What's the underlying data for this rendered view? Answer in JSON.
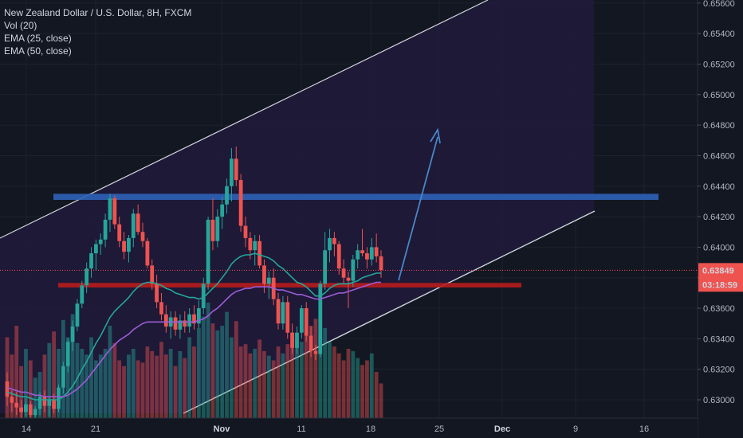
{
  "legend": {
    "title": "New Zealand Dollar / U.S. Dollar, 8H, FXCM",
    "vol": "Vol (20)",
    "ema25": "EMA (25, close)",
    "ema50": "EMA (50, close)"
  },
  "price_tag": {
    "value": "0.63849",
    "countdown": "03:18:59"
  },
  "colors": {
    "background": "#131722",
    "up": "#26a69a",
    "down": "#ef5350",
    "ema25": "#26a69a",
    "ema50": "#9c5cd6",
    "resistance_zone": "#2f62b7",
    "support_zone": "#b71c1c",
    "channel": "#d1d4dc",
    "projection_arrow": "#4a86c8",
    "channel_fill": "#1f1a3a",
    "grid": "#1e222d"
  },
  "chart_data": {
    "type": "candlestick",
    "title": "New Zealand Dollar / U.S. Dollar, 8H, FXCM",
    "y_axis_labels": [
      "0.65600",
      "0.65400",
      "0.65200",
      "0.65000",
      "0.64800",
      "0.64600",
      "0.64400",
      "0.64200",
      "0.64000",
      "0.63800",
      "0.63600",
      "0.63400",
      "0.63200",
      "0.63000"
    ],
    "ylim": [
      0.6288,
      0.6562
    ],
    "x_axis_labels": [
      "14",
      "21",
      "Nov",
      "11",
      "18",
      "25",
      "Dec",
      "9",
      "16"
    ],
    "last_price": 0.63849,
    "resistance_zone": [
      0.6431,
      0.6435
    ],
    "support_zone": [
      0.63736,
      0.63766
    ],
    "candles_ohlc": [
      [
        0.6312,
        0.6318,
        0.6296,
        0.6302
      ],
      [
        0.6302,
        0.6306,
        0.6292,
        0.6298
      ],
      [
        0.6298,
        0.6305,
        0.629,
        0.6295
      ],
      [
        0.6295,
        0.63,
        0.6288,
        0.6292
      ],
      [
        0.6292,
        0.6301,
        0.6289,
        0.6297
      ],
      [
        0.6297,
        0.6299,
        0.6288,
        0.629
      ],
      [
        0.629,
        0.6296,
        0.6288,
        0.6294
      ],
      [
        0.6294,
        0.6305,
        0.629,
        0.6302
      ],
      [
        0.6302,
        0.6306,
        0.6292,
        0.6296
      ],
      [
        0.6296,
        0.6302,
        0.6289,
        0.63
      ],
      [
        0.63,
        0.6304,
        0.6291,
        0.6294
      ],
      [
        0.6294,
        0.631,
        0.6292,
        0.6308
      ],
      [
        0.6308,
        0.6325,
        0.6304,
        0.6322
      ],
      [
        0.6322,
        0.634,
        0.6318,
        0.6338
      ],
      [
        0.6338,
        0.6352,
        0.6332,
        0.6348
      ],
      [
        0.6348,
        0.6366,
        0.6345,
        0.6363
      ],
      [
        0.6363,
        0.6378,
        0.636,
        0.6375
      ],
      [
        0.6375,
        0.639,
        0.637,
        0.6386
      ],
      [
        0.6386,
        0.64,
        0.638,
        0.6396
      ],
      [
        0.6396,
        0.6405,
        0.6385,
        0.6402
      ],
      [
        0.6402,
        0.6409,
        0.6395,
        0.6405
      ],
      [
        0.6405,
        0.6422,
        0.64,
        0.6418
      ],
      [
        0.6418,
        0.6435,
        0.641,
        0.6432
      ],
      [
        0.6432,
        0.6434,
        0.6412,
        0.6415
      ],
      [
        0.6415,
        0.642,
        0.64,
        0.6404
      ],
      [
        0.6404,
        0.641,
        0.6392,
        0.6397
      ],
      [
        0.6397,
        0.6408,
        0.639,
        0.6406
      ],
      [
        0.6406,
        0.6425,
        0.64,
        0.6422
      ],
      [
        0.6422,
        0.6428,
        0.6408,
        0.641
      ],
      [
        0.641,
        0.6416,
        0.64,
        0.6404
      ],
      [
        0.6404,
        0.6406,
        0.6386,
        0.6388
      ],
      [
        0.6388,
        0.6392,
        0.6372,
        0.6376
      ],
      [
        0.6376,
        0.6382,
        0.636,
        0.6364
      ],
      [
        0.6364,
        0.637,
        0.6352,
        0.6356
      ],
      [
        0.6356,
        0.6362,
        0.6344,
        0.6348
      ],
      [
        0.6348,
        0.6358,
        0.634,
        0.6354
      ],
      [
        0.6354,
        0.6358,
        0.6342,
        0.6346
      ],
      [
        0.6346,
        0.6356,
        0.634,
        0.6352
      ],
      [
        0.6352,
        0.6358,
        0.6344,
        0.6348
      ],
      [
        0.6348,
        0.636,
        0.6344,
        0.6356
      ],
      [
        0.6356,
        0.6362,
        0.6346,
        0.635
      ],
      [
        0.635,
        0.6365,
        0.6347,
        0.636
      ],
      [
        0.636,
        0.638,
        0.6356,
        0.6376
      ],
      [
        0.6376,
        0.642,
        0.6372,
        0.6418
      ],
      [
        0.6418,
        0.6432,
        0.6398,
        0.6404
      ],
      [
        0.6404,
        0.6425,
        0.64,
        0.642
      ],
      [
        0.642,
        0.6433,
        0.6412,
        0.6428
      ],
      [
        0.6428,
        0.6445,
        0.6422,
        0.644
      ],
      [
        0.644,
        0.6465,
        0.643,
        0.6458
      ],
      [
        0.6458,
        0.6466,
        0.644,
        0.6444
      ],
      [
        0.6444,
        0.6448,
        0.641,
        0.6414
      ],
      [
        0.6414,
        0.642,
        0.64,
        0.6406
      ],
      [
        0.6406,
        0.641,
        0.6392,
        0.6398
      ],
      [
        0.6398,
        0.6408,
        0.6388,
        0.6404
      ],
      [
        0.6404,
        0.6408,
        0.6386,
        0.6388
      ],
      [
        0.6388,
        0.6392,
        0.637,
        0.6376
      ],
      [
        0.6376,
        0.6384,
        0.6366,
        0.638
      ],
      [
        0.638,
        0.6386,
        0.6362,
        0.6366
      ],
      [
        0.6366,
        0.637,
        0.6346,
        0.635
      ],
      [
        0.635,
        0.6368,
        0.6346,
        0.6364
      ],
      [
        0.6364,
        0.6368,
        0.634,
        0.6344
      ],
      [
        0.6344,
        0.635,
        0.633,
        0.6334
      ],
      [
        0.6334,
        0.6348,
        0.633,
        0.6344
      ],
      [
        0.6344,
        0.6362,
        0.634,
        0.636
      ],
      [
        0.636,
        0.6364,
        0.6338,
        0.6342
      ],
      [
        0.6342,
        0.6348,
        0.6328,
        0.6332
      ],
      [
        0.6332,
        0.6336,
        0.6326,
        0.633
      ],
      [
        0.633,
        0.6378,
        0.6328,
        0.6376
      ],
      [
        0.6376,
        0.641,
        0.6372,
        0.6398
      ],
      [
        0.6398,
        0.6412,
        0.639,
        0.6406
      ],
      [
        0.6406,
        0.641,
        0.6394,
        0.6402
      ],
      [
        0.6402,
        0.6404,
        0.6382,
        0.6386
      ],
      [
        0.6386,
        0.6392,
        0.6376,
        0.638
      ],
      [
        0.638,
        0.6384,
        0.636,
        0.6378
      ],
      [
        0.6378,
        0.6395,
        0.6374,
        0.6392
      ],
      [
        0.6392,
        0.6402,
        0.6386,
        0.6398
      ],
      [
        0.6398,
        0.6412,
        0.6394,
        0.6396
      ],
      [
        0.6396,
        0.64,
        0.6386,
        0.6392
      ],
      [
        0.6392,
        0.6406,
        0.6388,
        0.64
      ],
      [
        0.64,
        0.6409,
        0.639,
        0.6394
      ],
      [
        0.6394,
        0.6398,
        0.638,
        0.6385
      ]
    ],
    "ema25": [
      0.6305,
      0.6304,
      0.6303,
      0.6302,
      0.6302,
      0.6301,
      0.63,
      0.63,
      0.63,
      0.63,
      0.63,
      0.63,
      0.6302,
      0.6305,
      0.6309,
      0.6314,
      0.632,
      0.6325,
      0.6331,
      0.6337,
      0.6342,
      0.6348,
      0.6354,
      0.6358,
      0.6361,
      0.6364,
      0.6367,
      0.6371,
      0.6374,
      0.6376,
      0.6377,
      0.6377,
      0.6376,
      0.6375,
      0.6373,
      0.6372,
      0.637,
      0.6369,
      0.6368,
      0.6367,
      0.6367,
      0.6366,
      0.6367,
      0.637,
      0.6373,
      0.6376,
      0.638,
      0.6384,
      0.6389,
      0.6392,
      0.6394,
      0.6395,
      0.6395,
      0.6396,
      0.6395,
      0.6394,
      0.6393,
      0.6391,
      0.6388,
      0.6386,
      0.6383,
      0.638,
      0.6377,
      0.6376,
      0.6374,
      0.6371,
      0.6368,
      0.6368,
      0.637,
      0.6373,
      0.6375,
      0.6376,
      0.6376,
      0.6376,
      0.6377,
      0.6378,
      0.638,
      0.6381,
      0.6382,
      0.6383,
      0.6383
    ],
    "ema50": [
      0.6308,
      0.6307,
      0.6306,
      0.6305,
      0.6305,
      0.6304,
      0.6303,
      0.6303,
      0.6302,
      0.6302,
      0.6302,
      0.6302,
      0.6302,
      0.6303,
      0.6305,
      0.6307,
      0.631,
      0.6313,
      0.6317,
      0.6321,
      0.6325,
      0.6329,
      0.6333,
      0.6336,
      0.6339,
      0.6341,
      0.6343,
      0.6346,
      0.6348,
      0.635,
      0.6351,
      0.6351,
      0.6351,
      0.6351,
      0.6351,
      0.6351,
      0.6351,
      0.6351,
      0.6351,
      0.6351,
      0.6351,
      0.6352,
      0.6353,
      0.6355,
      0.6358,
      0.636,
      0.6363,
      0.6366,
      0.6369,
      0.6371,
      0.6372,
      0.6373,
      0.6373,
      0.6374,
      0.6374,
      0.6374,
      0.6374,
      0.6373,
      0.6372,
      0.6372,
      0.6371,
      0.637,
      0.6369,
      0.6369,
      0.6368,
      0.6367,
      0.6366,
      0.6366,
      0.6367,
      0.6368,
      0.6369,
      0.637,
      0.637,
      0.6371,
      0.6372,
      0.6373,
      0.6374,
      0.6375,
      0.6376,
      0.6377,
      0.6377
    ],
    "volume": [
      0.7,
      0.55,
      0.8,
      0.45,
      0.6,
      0.5,
      0.35,
      0.4,
      0.55,
      0.65,
      0.75,
      0.6,
      0.85,
      0.7,
      0.9,
      0.65,
      0.6,
      0.55,
      0.7,
      0.5,
      0.55,
      0.6,
      0.8,
      0.65,
      0.5,
      0.45,
      0.55,
      0.6,
      0.5,
      0.48,
      0.62,
      0.58,
      0.54,
      0.66,
      0.55,
      0.6,
      0.45,
      0.58,
      0.52,
      0.7,
      0.62,
      0.78,
      0.88,
      1.0,
      0.82,
      0.76,
      0.8,
      0.92,
      0.7,
      0.84,
      0.62,
      0.64,
      0.56,
      0.6,
      0.68,
      0.58,
      0.54,
      0.5,
      0.62,
      0.56,
      0.64,
      0.74,
      0.7,
      0.66,
      0.76,
      0.8,
      0.86,
      0.74,
      0.78,
      0.66,
      0.62,
      0.56,
      0.5,
      0.6,
      0.58,
      0.52,
      0.46,
      0.5,
      0.56,
      0.4,
      0.3
    ]
  }
}
